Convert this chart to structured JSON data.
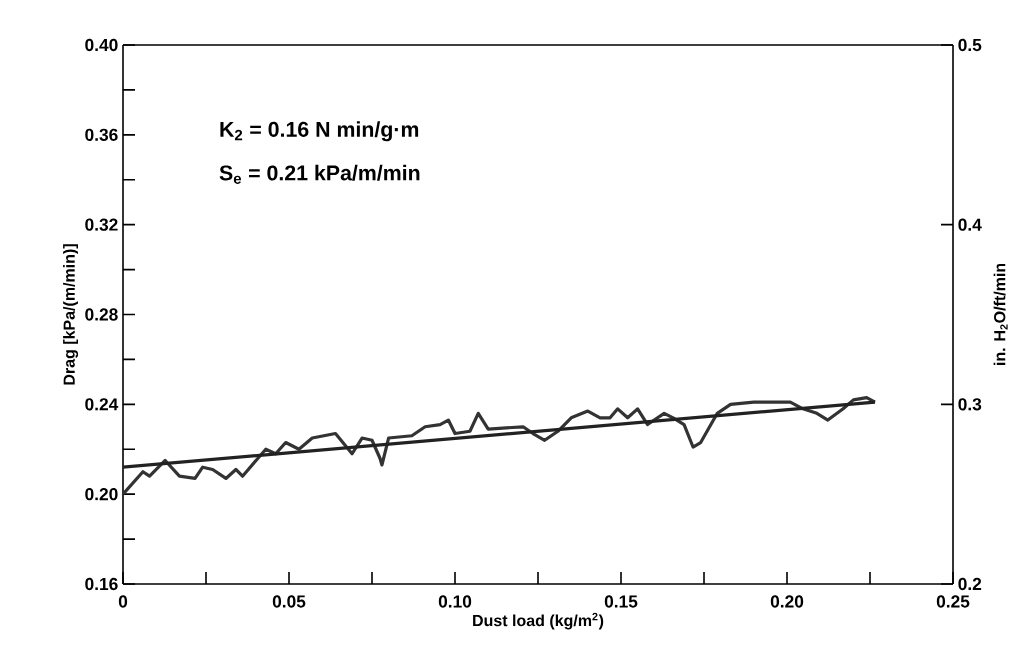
{
  "chart_data": {
    "type": "line",
    "xlabel": "Dust load (kg/m$^{2}$)",
    "ylabel": "Drag [kPa/(m/min)]",
    "y2label": "in. H$_{2}$O/ft/min",
    "annotations": [
      "K$_{2}$ = 0.16 N min/g·m",
      "S$_{e}$ = 0.21 kPa/m/min"
    ],
    "series": [
      {
        "color": "#333333",
        "x": [
          0,
          0.006,
          0.008,
          0.0127,
          0.017,
          0.0217,
          0.024,
          0.027,
          0.031,
          0.034,
          0.036,
          0.043,
          0.046,
          0.049,
          0.053,
          0.057,
          0.064,
          0.069,
          0.072,
          0.075,
          0.0774,
          0.078,
          0.08,
          0.087,
          0.091,
          0.0955,
          0.098,
          0.1,
          0.1045,
          0.107,
          0.11,
          0.1205,
          0.1235,
          0.127,
          0.131,
          0.135,
          0.14,
          0.1437,
          0.1467,
          0.149,
          0.152,
          0.155,
          0.158,
          0.163,
          0.1657,
          0.169,
          0.1717,
          0.174,
          0.179,
          0.183,
          0.19,
          0.201,
          0.2048,
          0.209,
          0.2123,
          0.2169,
          0.22,
          0.224,
          0.2265
        ],
        "values": [
          0.2,
          0.21,
          0.208,
          0.215,
          0.208,
          0.207,
          0.212,
          0.211,
          0.207,
          0.211,
          0.208,
          0.22,
          0.218,
          0.223,
          0.22,
          0.225,
          0.227,
          0.218,
          0.225,
          0.224,
          0.216,
          0.213,
          0.225,
          0.226,
          0.23,
          0.231,
          0.233,
          0.227,
          0.228,
          0.236,
          0.229,
          0.23,
          0.227,
          0.224,
          0.228,
          0.234,
          0.237,
          0.234,
          0.234,
          0.238,
          0.234,
          0.238,
          0.231,
          0.236,
          0.234,
          0.231,
          0.221,
          0.223,
          0.236,
          0.24,
          0.241,
          0.241,
          0.238,
          0.236,
          0.233,
          0.238,
          0.242,
          0.243,
          0.241
        ]
      },
      {
        "type": "line",
        "color": "#222222",
        "x": [
          0,
          0.2265
        ],
        "values": [
          0.212,
          0.241
        ]
      }
    ],
    "xlim": [
      0,
      0.25
    ],
    "ylim": [
      0.16,
      0.4
    ],
    "y2lim": [
      0.2,
      0.5
    ],
    "xticks": [
      {
        "value": 0,
        "label": "0"
      },
      {
        "value": 0.025,
        "label": null
      },
      {
        "value": 0.05,
        "label": "0.05"
      },
      {
        "value": 0.075,
        "label": null
      },
      {
        "value": 0.1,
        "label": "0.10"
      },
      {
        "value": 0.125,
        "label": null
      },
      {
        "value": 0.15,
        "label": "0.15"
      },
      {
        "value": 0.175,
        "label": null
      },
      {
        "value": 0.2,
        "label": "0.20"
      },
      {
        "value": 0.225,
        "label": null
      },
      {
        "value": 0.25,
        "label": "0.25"
      }
    ],
    "yticks": [
      {
        "value": 0.16,
        "label": "0.16"
      },
      {
        "value": 0.18,
        "label": null
      },
      {
        "value": 0.2,
        "label": "0.20"
      },
      {
        "value": 0.22,
        "label": null
      },
      {
        "value": 0.24,
        "label": "0.24"
      },
      {
        "value": 0.26,
        "label": null
      },
      {
        "value": 0.28,
        "label": "0.28"
      },
      {
        "value": 0.3,
        "label": null
      },
      {
        "value": 0.32,
        "label": "0.32"
      },
      {
        "value": 0.34,
        "label": null
      },
      {
        "value": 0.36,
        "label": "0.36"
      },
      {
        "value": 0.38,
        "label": null
      },
      {
        "value": 0.4,
        "label": "0.40"
      }
    ],
    "y2ticks": [
      0.2,
      0.3,
      0.4,
      0.5
    ],
    "line_style": "solid",
    "grid": false
  }
}
